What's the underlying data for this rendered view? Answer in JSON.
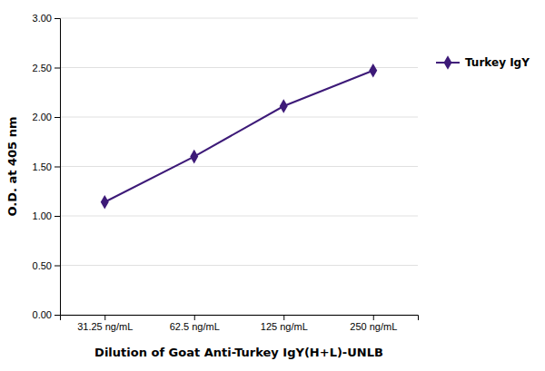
{
  "chart_data": {
    "type": "line",
    "xlabel": "Dilution of Goat Anti-Turkey IgY(H+L)-UNLB",
    "ylabel": "O.D. at 405 nm",
    "categories": [
      "31.25 ng/mL",
      "62.5 ng/mL",
      "125 ng/mL",
      "250 ng/mL"
    ],
    "series": [
      {
        "name": "Turkey IgY",
        "color": "#3d1a78",
        "marker": "diamond",
        "line_style": "solid",
        "values": [
          1.14,
          1.6,
          2.11,
          2.47
        ]
      }
    ],
    "ylim": [
      0.0,
      3.0
    ],
    "yticks": [
      {
        "value": 0.0,
        "label": "0.00"
      },
      {
        "value": 0.5,
        "label": "0.50"
      },
      {
        "value": 1.0,
        "label": "1.00"
      },
      {
        "value": 1.5,
        "label": "1.50"
      },
      {
        "value": 2.0,
        "label": "2.00"
      },
      {
        "value": 2.5,
        "label": "2.50"
      },
      {
        "value": 3.0,
        "label": "3.00"
      }
    ],
    "grid": true,
    "legend": "right"
  }
}
